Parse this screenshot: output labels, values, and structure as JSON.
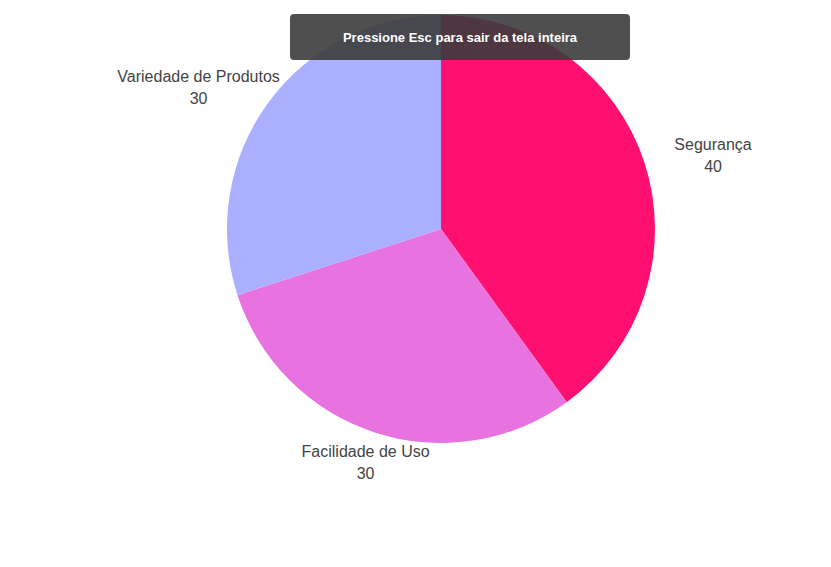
{
  "chart_data": {
    "type": "pie",
    "categories": [
      "Segurança",
      "Facilidade de Uso",
      "Variedade de Produtos"
    ],
    "values": [
      40,
      30,
      30
    ],
    "colors": [
      "#ff1070",
      "#e872e0",
      "#aab0ff"
    ],
    "data_labels": true,
    "annotations": [
      "Pressione Esc para sair da tela inteira"
    ]
  }
}
